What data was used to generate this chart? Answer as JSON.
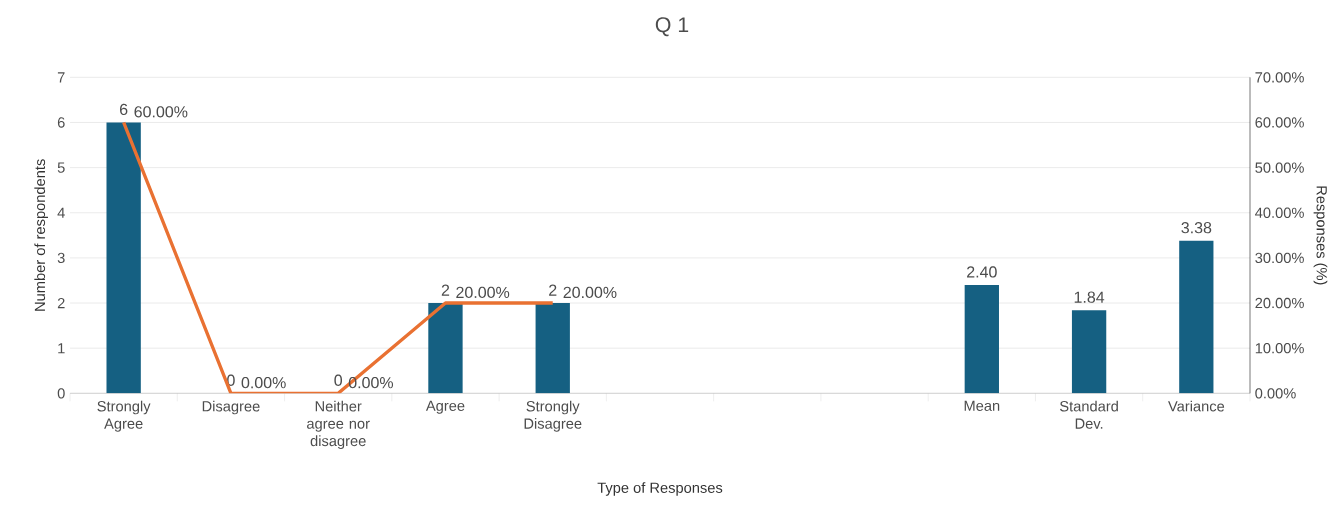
{
  "chart_data": {
    "type": "bar",
    "title": "Q 1",
    "xlabel": "Type of Responses",
    "ylabel": "Number of respondents",
    "y2label": "Responses (%)",
    "categories": [
      "Strongly Agree",
      "Disagree",
      "Neither agree nor disagree",
      "Agree",
      "Strongly Disagree",
      null,
      null,
      null,
      "Mean",
      "Standard Dev.",
      "Variance"
    ],
    "series": [
      {
        "color": "#156082",
        "values": [
          6,
          0,
          0,
          2,
          2,
          null,
          null,
          null,
          2.4,
          1.84,
          3.38
        ],
        "value_labels": [
          "6",
          "0",
          "0",
          "2",
          "2",
          null,
          null,
          null,
          "2.40",
          "1.84",
          "3.38"
        ]
      },
      {
        "type": "line",
        "axis": "y2",
        "color": "#e97132",
        "values": [
          60,
          0,
          0,
          20,
          20,
          null,
          null,
          null,
          null,
          null,
          null
        ],
        "value_labels": [
          "60.00%",
          "0.00%",
          "0.00%",
          "20.00%",
          "20.00%",
          null,
          null,
          null,
          null,
          null,
          null
        ]
      }
    ],
    "ylim": [
      0,
      7
    ],
    "yticks": [
      0,
      1,
      2,
      3,
      4,
      5,
      6,
      7
    ],
    "y2lim": [
      0,
      70
    ],
    "y2ticks": [
      {
        "value": 0,
        "label": "0.00%"
      },
      {
        "value": 10,
        "label": "10.00%"
      },
      {
        "value": 20,
        "label": "20.00%"
      },
      {
        "value": 30,
        "label": "30.00%"
      },
      {
        "value": 40,
        "label": "40.00%"
      },
      {
        "value": 50,
        "label": "50.00%"
      },
      {
        "value": 60,
        "label": "60.00%"
      },
      {
        "value": 70,
        "label": "70.00%"
      }
    ],
    "grid": "y"
  }
}
